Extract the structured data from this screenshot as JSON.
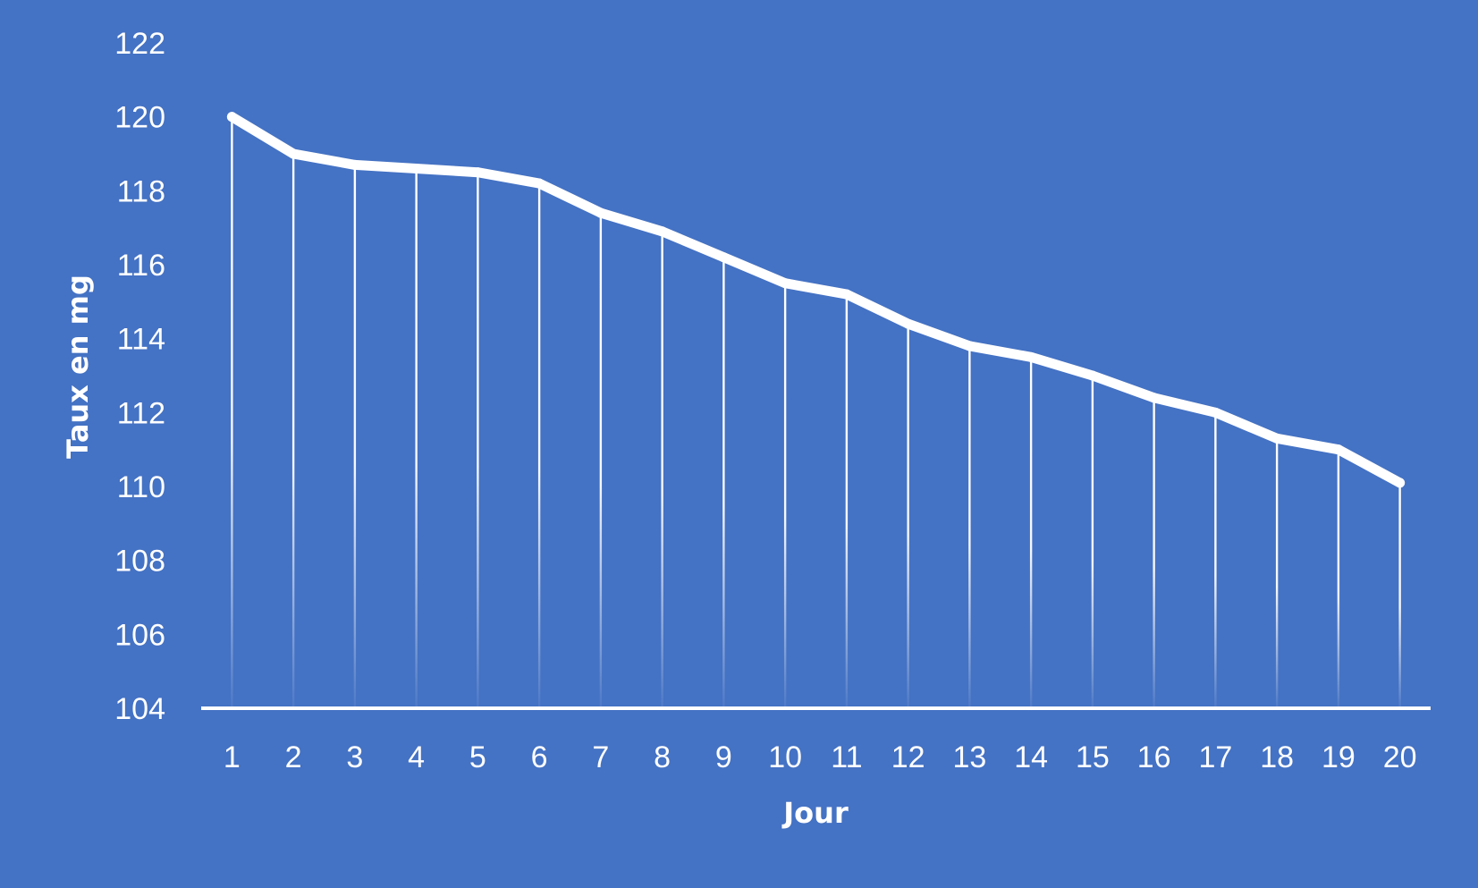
{
  "colors": {
    "background": "#4472C4",
    "foreground": "#FFFFFF"
  },
  "chart_data": {
    "type": "line",
    "xlabel": "Jour",
    "ylabel": "Taux en mg",
    "categories": [
      "1",
      "2",
      "3",
      "4",
      "5",
      "6",
      "7",
      "8",
      "9",
      "10",
      "11",
      "12",
      "13",
      "14",
      "15",
      "16",
      "17",
      "18",
      "19",
      "20"
    ],
    "series": [
      {
        "values": [
          120.0,
          119.0,
          118.7,
          118.6,
          118.5,
          118.2,
          117.4,
          116.9,
          116.2,
          115.5,
          115.2,
          114.4,
          113.8,
          113.5,
          113.0,
          112.4,
          112.0,
          111.3,
          111.0,
          110.1
        ]
      }
    ],
    "ylim": [
      104,
      122
    ],
    "yticks": [
      104,
      106,
      108,
      110,
      112,
      114,
      116,
      118,
      120,
      122
    ],
    "drop_lines": true,
    "grid": false
  }
}
